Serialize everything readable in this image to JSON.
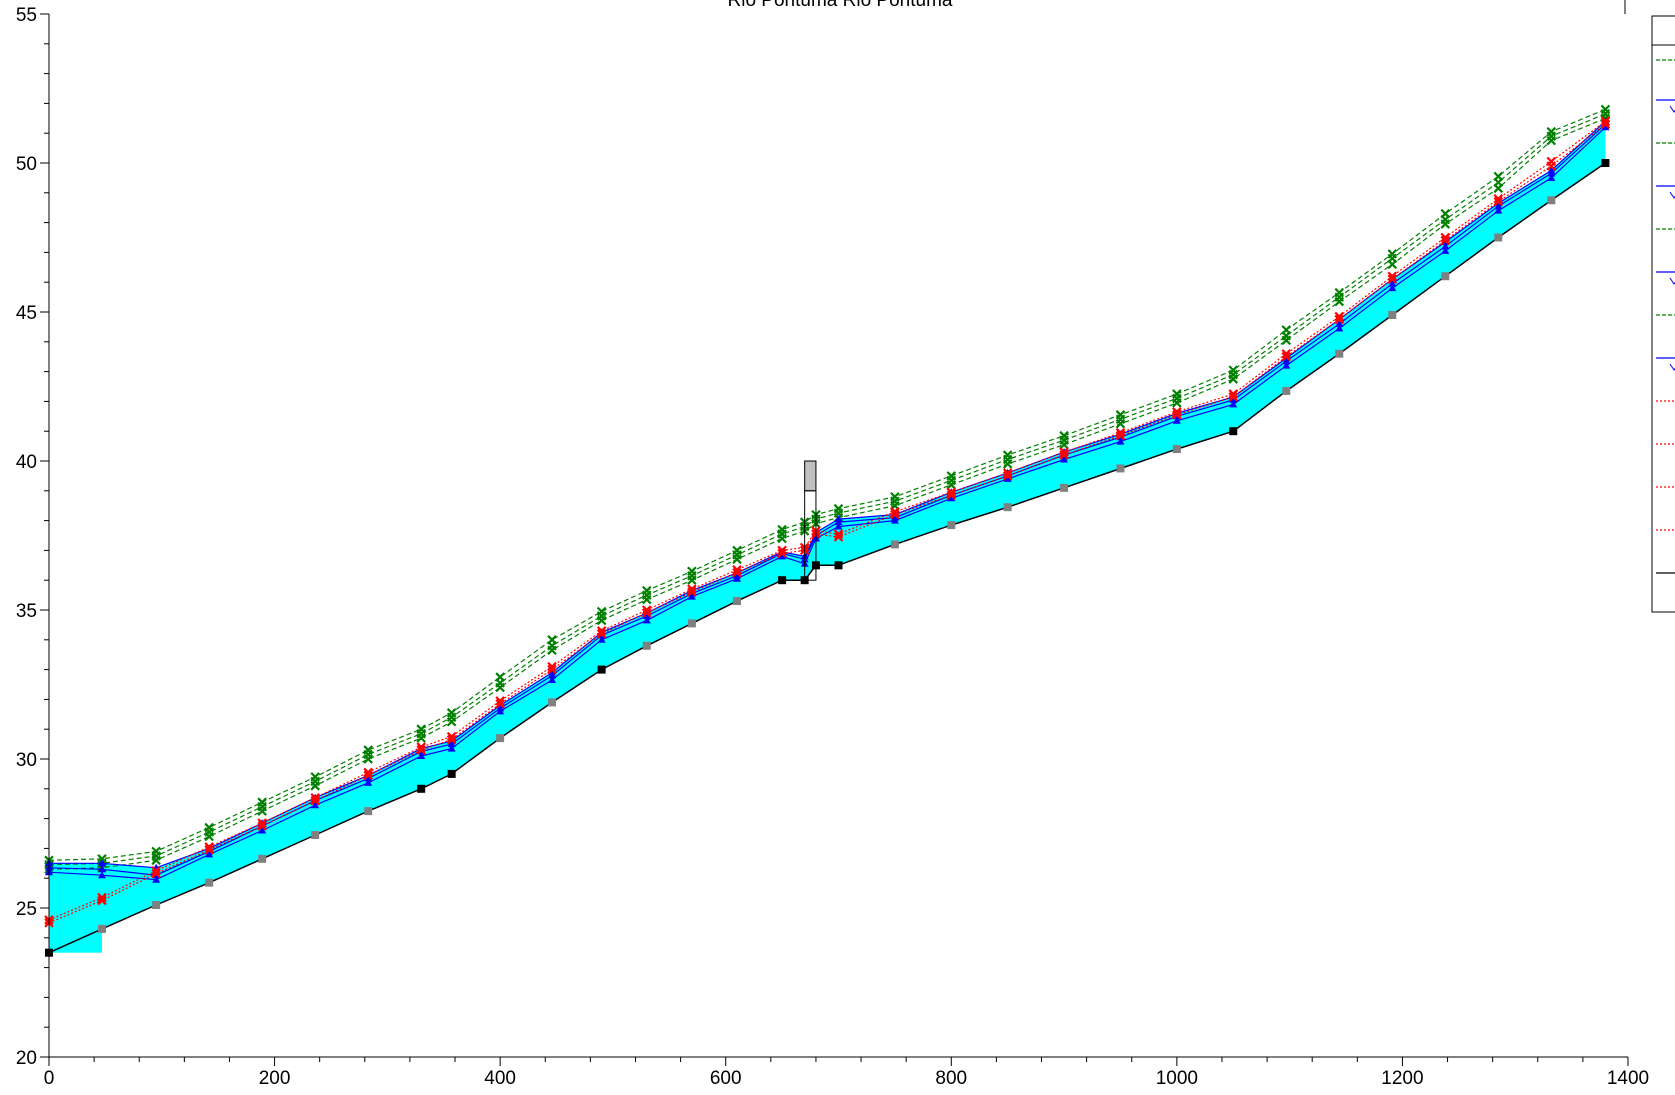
{
  "chart_data": {
    "type": "line",
    "title": "Rio Pontuma Rio Pontuma",
    "xlabel": "",
    "ylabel": "",
    "xlim": [
      0,
      1400
    ],
    "ylim": [
      20,
      55
    ],
    "xticks": [
      0,
      200,
      400,
      600,
      800,
      1000,
      1200,
      1400
    ],
    "yticks": [
      20,
      25,
      30,
      35,
      40,
      45,
      50,
      55
    ],
    "grid": false,
    "legend_position": "right (clipped)",
    "colors": {
      "water_fill": "#00ffff",
      "ground": "#000000",
      "green_series": "#008000",
      "blue_series": "#0000ff",
      "red_series": "#ff0000",
      "station_marker": "#808080",
      "structure_marker": "#000000",
      "culvert_fill": "#c0c0c0"
    },
    "x": [
      0,
      47,
      95,
      142,
      189,
      236,
      283,
      330,
      357,
      400,
      446,
      490,
      530,
      570,
      610,
      650,
      670,
      680,
      700,
      750,
      800,
      850,
      900,
      950,
      1000,
      1050,
      1097,
      1144,
      1191,
      1238,
      1285,
      1332,
      1380
    ],
    "ground": [
      23.5,
      24.3,
      25.1,
      25.85,
      26.65,
      27.45,
      28.25,
      29.0,
      29.5,
      30.7,
      31.9,
      33.0,
      33.8,
      34.55,
      35.3,
      36.0,
      36.0,
      36.5,
      36.5,
      37.2,
      37.85,
      38.45,
      39.1,
      39.75,
      40.4,
      41.0,
      42.35,
      43.6,
      44.9,
      46.2,
      47.5,
      48.75,
      50.0
    ],
    "structure_points_x": [
      0,
      330,
      357,
      490,
      650,
      670,
      680,
      700,
      1050,
      1380
    ],
    "culvert": {
      "x": [
        670,
        680
      ],
      "bottom": 36.0,
      "top": 40.0,
      "lower_opening_top": 39.0
    },
    "series": [
      {
        "group": "green",
        "values": [
          26.6,
          26.65,
          26.9,
          27.7,
          28.55,
          29.4,
          30.3,
          31.0,
          31.55,
          32.75,
          34.0,
          34.95,
          35.65,
          36.3,
          37.0,
          37.7,
          37.95,
          38.2,
          38.4,
          38.8,
          39.5,
          40.2,
          40.85,
          41.55,
          42.25,
          43.05,
          44.4,
          45.65,
          46.95,
          48.3,
          49.55,
          51.05,
          51.8
        ]
      },
      {
        "group": "green",
        "values": [
          26.45,
          26.5,
          26.75,
          27.55,
          28.4,
          29.25,
          30.15,
          30.85,
          31.4,
          32.55,
          33.8,
          34.8,
          35.5,
          36.15,
          36.85,
          37.55,
          37.8,
          38.05,
          38.25,
          38.65,
          39.35,
          40.05,
          40.7,
          41.4,
          42.1,
          42.9,
          44.2,
          45.5,
          46.8,
          48.1,
          49.35,
          50.9,
          51.65
        ]
      },
      {
        "group": "green",
        "values": [
          26.3,
          26.35,
          26.6,
          27.4,
          28.25,
          29.1,
          30.0,
          30.7,
          31.25,
          32.4,
          33.65,
          34.65,
          35.35,
          36.0,
          36.7,
          37.4,
          37.65,
          37.9,
          38.1,
          38.5,
          39.2,
          39.9,
          40.55,
          41.25,
          41.95,
          42.75,
          44.05,
          45.35,
          46.6,
          47.95,
          49.15,
          50.75,
          51.5
        ]
      },
      {
        "group": "blue",
        "values": [
          26.5,
          26.5,
          26.35,
          27.0,
          27.85,
          28.7,
          29.45,
          30.35,
          30.6,
          31.8,
          32.9,
          34.25,
          34.9,
          35.65,
          36.25,
          36.95,
          36.8,
          37.6,
          38.05,
          38.2,
          38.95,
          39.6,
          40.3,
          40.9,
          41.6,
          42.15,
          43.45,
          44.75,
          46.1,
          47.35,
          48.65,
          49.75,
          51.4
        ]
      },
      {
        "group": "blue",
        "values": [
          26.35,
          26.3,
          26.1,
          26.9,
          27.75,
          28.6,
          29.35,
          30.25,
          30.5,
          31.7,
          32.8,
          34.15,
          34.8,
          35.55,
          36.15,
          36.9,
          36.7,
          37.5,
          37.95,
          38.1,
          38.85,
          39.5,
          40.2,
          40.8,
          41.5,
          42.05,
          43.35,
          44.6,
          45.95,
          47.2,
          48.55,
          49.65,
          51.3
        ]
      },
      {
        "group": "blue",
        "values": [
          26.2,
          26.1,
          25.95,
          26.8,
          27.6,
          28.45,
          29.2,
          30.1,
          30.35,
          31.6,
          32.65,
          34.0,
          34.65,
          35.45,
          36.05,
          36.8,
          36.55,
          37.4,
          37.8,
          38.0,
          38.75,
          39.4,
          40.05,
          40.65,
          41.35,
          41.9,
          43.2,
          44.45,
          45.8,
          47.05,
          48.4,
          49.5,
          51.2
        ]
      },
      {
        "group": "red",
        "values": [
          24.6,
          25.35,
          26.25,
          27.05,
          27.85,
          28.7,
          29.55,
          30.4,
          30.75,
          31.95,
          33.1,
          34.3,
          35.0,
          35.7,
          36.35,
          37.0,
          37.1,
          37.65,
          37.55,
          38.3,
          38.95,
          39.6,
          40.3,
          40.95,
          41.65,
          42.25,
          43.6,
          44.85,
          46.2,
          47.5,
          48.8,
          50.05,
          51.4
        ]
      },
      {
        "group": "red",
        "values": [
          24.5,
          25.25,
          26.15,
          26.95,
          27.75,
          28.6,
          29.45,
          30.3,
          30.65,
          31.85,
          33.0,
          34.2,
          34.9,
          35.6,
          36.25,
          36.9,
          37.0,
          37.55,
          37.45,
          38.2,
          38.85,
          39.5,
          40.2,
          40.85,
          41.55,
          42.15,
          43.5,
          44.75,
          46.1,
          47.4,
          48.7,
          49.9,
          51.3
        ]
      }
    ],
    "legend": {
      "entries": 13,
      "text": []
    }
  }
}
